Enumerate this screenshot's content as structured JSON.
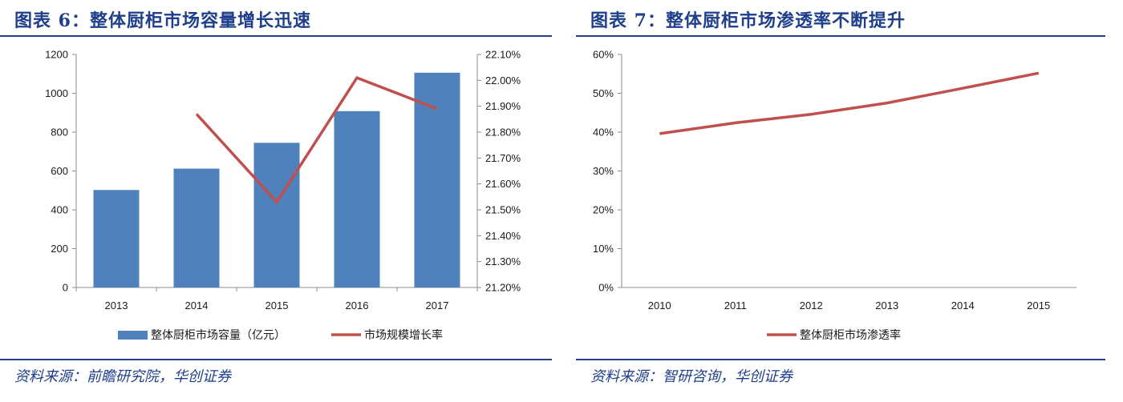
{
  "left": {
    "title": "图表 6：整体厨柜市场容量增长迅速",
    "source": "资料来源：前瞻研究院，华创证券",
    "chart_data": {
      "type": "bar",
      "categories": [
        "2013",
        "2014",
        "2015",
        "2016",
        "2017"
      ],
      "series": [
        {
          "name": "整体厨柜市场容量（亿元）",
          "type": "bar",
          "axis": "left",
          "color": "#4f81bd",
          "values": [
            502,
            612,
            745,
            908,
            1106
          ]
        },
        {
          "name": "市场规模增长率",
          "type": "line",
          "axis": "right",
          "color": "#c0504d",
          "values": [
            null,
            21.87,
            21.53,
            22.01,
            21.89
          ]
        }
      ],
      "ylim": [
        0,
        1200
      ],
      "y_ticks": [
        "0",
        "200",
        "400",
        "600",
        "800",
        "1000",
        "1200"
      ],
      "y2lim": [
        21.2,
        22.1
      ],
      "y2_ticks": [
        "21.20%",
        "21.30%",
        "21.40%",
        "21.50%",
        "21.60%",
        "21.70%",
        "21.80%",
        "21.90%",
        "22.00%",
        "22.10%"
      ],
      "grid": false,
      "legend": "bottom"
    }
  },
  "right": {
    "title": "图表 7：整体厨柜市场渗透率不断提升",
    "source": "资料来源：智研咨询，华创证券",
    "chart_data": {
      "type": "line",
      "x": [
        "2010",
        "2011",
        "2012",
        "2013",
        "2014",
        "2015"
      ],
      "series": [
        {
          "name": "整体厨柜市场渗透率",
          "color": "#c0504d",
          "values": [
            39.6,
            42.4,
            44.6,
            47.5,
            51.3,
            55.2
          ]
        }
      ],
      "ylim": [
        0,
        60
      ],
      "y_ticks": [
        "0%",
        "10%",
        "20%",
        "30%",
        "40%",
        "50%",
        "60%"
      ],
      "grid": false,
      "legend": "bottom"
    }
  }
}
